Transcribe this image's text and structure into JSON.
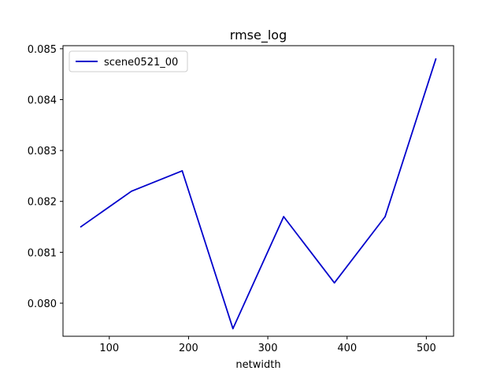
{
  "chart_data": {
    "type": "line",
    "title": "rmse_log",
    "xlabel": "netwidth",
    "ylabel": "",
    "xlim": [
      41.6,
      534.4
    ],
    "ylim": [
      0.07935,
      0.08506
    ],
    "x_ticks": [
      100,
      200,
      300,
      400,
      500
    ],
    "y_ticks": [
      0.08,
      0.081,
      0.082,
      0.083,
      0.084,
      0.085
    ],
    "x_tick_labels": [
      "100",
      "200",
      "300",
      "400",
      "500"
    ],
    "y_tick_labels": [
      "0.080",
      "0.081",
      "0.082",
      "0.083",
      "0.084",
      "0.085"
    ],
    "grid": false,
    "legend_position": "top-left",
    "x": [
      64,
      128,
      192,
      256,
      320,
      384,
      448,
      512
    ],
    "series": [
      {
        "name": "scene0521_00",
        "color": "#0000cc",
        "values": [
          0.0815,
          0.0822,
          0.0826,
          0.0795,
          0.0817,
          0.0804,
          0.0817,
          0.0848
        ]
      }
    ]
  }
}
